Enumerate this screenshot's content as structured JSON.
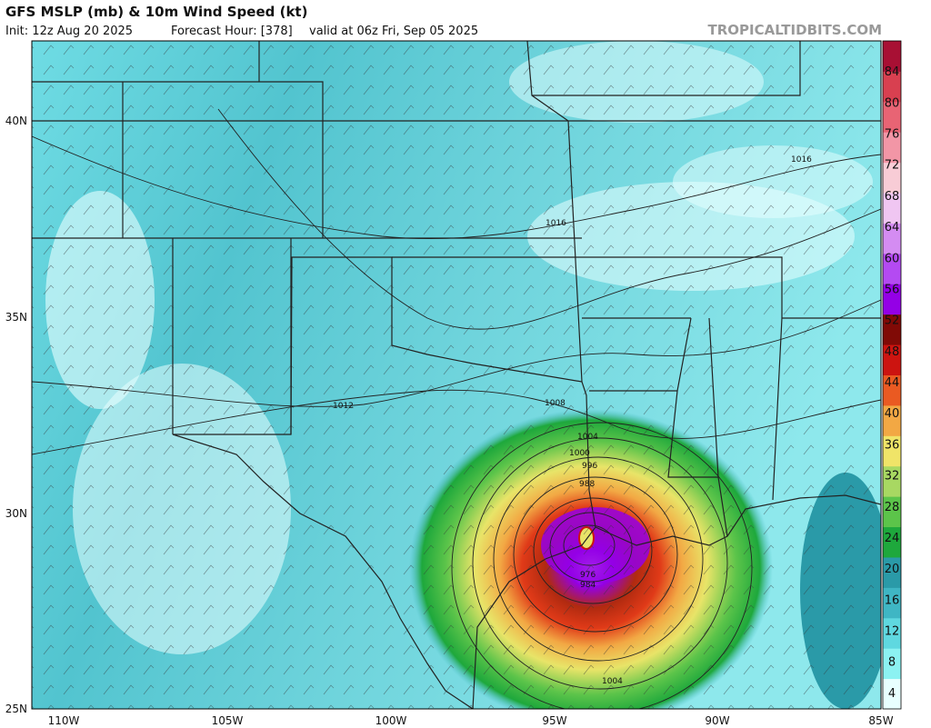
{
  "header": {
    "title": "GFS MSLP (mb) & 10m Wind Speed (kt)",
    "init": "Init: 12z Aug 20 2025",
    "forecast_hour": "Forecast Hour: [378]",
    "valid": "valid at 06z Fri, Sep 05 2025",
    "site": "TROPICALTIDBITS.COM"
  },
  "map": {
    "lat_labels": [
      "40N",
      "35N",
      "30N",
      "25N"
    ],
    "lon_labels": [
      "110W",
      "105W",
      "100W",
      "95W",
      "90W",
      "85W"
    ],
    "contour_labels": [
      "1016",
      "1016",
      "1012",
      "1008",
      "1004",
      "1000",
      "996",
      "988",
      "976",
      "984",
      "1004"
    ]
  },
  "colorbar": {
    "labels": [
      4,
      8,
      12,
      16,
      20,
      24,
      28,
      32,
      36,
      40,
      44,
      48,
      52,
      56,
      60,
      64,
      68,
      72,
      76,
      80,
      84
    ],
    "colors": [
      "#e8ffff",
      "#8cf2f2",
      "#5fd8e0",
      "#3fb6c4",
      "#2a9aa8",
      "#1ea83c",
      "#5cc44a",
      "#a8d862",
      "#f0e468",
      "#f2a844",
      "#ea5a22",
      "#cc1410",
      "#800a06",
      "#9400e6",
      "#b44af2",
      "#d48cf2",
      "#f0c6f2",
      "#f8ccd6",
      "#f296a6",
      "#e86474",
      "#d84050",
      "#a81034"
    ]
  }
}
